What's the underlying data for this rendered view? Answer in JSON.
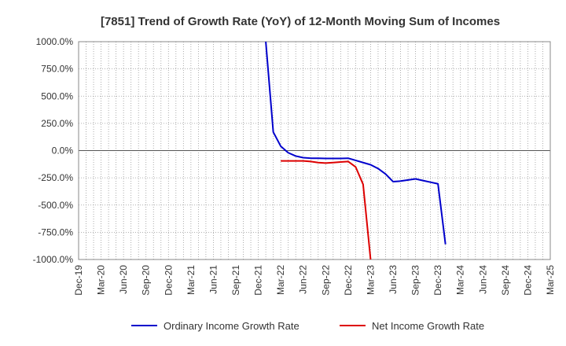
{
  "chart_data": {
    "type": "line",
    "title": "[7851]  Trend of Growth Rate (YoY) of 12-Month Moving Sum of Incomes",
    "xlabel": "",
    "ylabel": "",
    "ylim": [
      -1000,
      1000
    ],
    "y_ticks": [
      1000,
      750,
      500,
      250,
      0,
      -250,
      -500,
      -750,
      -1000
    ],
    "y_tick_labels": [
      "1000.0%",
      "750.0%",
      "500.0%",
      "250.0%",
      "0.0%",
      "-250.0%",
      "-500.0%",
      "-750.0%",
      "-1000.0%"
    ],
    "x_tick_labels": [
      "Dec-19",
      "Mar-20",
      "Jun-20",
      "Sep-20",
      "Dec-20",
      "Mar-21",
      "Jun-21",
      "Sep-21",
      "Dec-21",
      "Mar-22",
      "Jun-22",
      "Sep-22",
      "Dec-22",
      "Mar-23",
      "Jun-23",
      "Sep-23",
      "Dec-23",
      "Mar-24",
      "Jun-24",
      "Sep-24",
      "Dec-24",
      "Mar-25"
    ],
    "x_range": [
      "2019-12",
      "2025-03"
    ],
    "grid": true,
    "legend_position": "bottom",
    "series": [
      {
        "name": "Ordinary Income Growth Rate",
        "color": "#0000cc",
        "points": [
          [
            "2022-01",
            1000
          ],
          [
            "2022-02",
            170
          ],
          [
            "2022-03",
            40
          ],
          [
            "2022-04",
            -20
          ],
          [
            "2022-05",
            -50
          ],
          [
            "2022-06",
            -65
          ],
          [
            "2022-07",
            -70
          ],
          [
            "2022-08",
            -70
          ],
          [
            "2022-09",
            -72
          ],
          [
            "2022-10",
            -72
          ],
          [
            "2022-11",
            -72
          ],
          [
            "2022-12",
            -70
          ],
          [
            "2023-01",
            -90
          ],
          [
            "2023-02",
            -110
          ],
          [
            "2023-03",
            -130
          ],
          [
            "2023-04",
            -165
          ],
          [
            "2023-05",
            -215
          ],
          [
            "2023-06",
            -285
          ],
          [
            "2023-07",
            -280
          ],
          [
            "2023-08",
            -270
          ],
          [
            "2023-09",
            -260
          ],
          [
            "2023-10",
            -275
          ],
          [
            "2023-11",
            -290
          ],
          [
            "2023-12",
            -305
          ],
          [
            "2024-01",
            -860
          ]
        ]
      },
      {
        "name": "Net Income Growth Rate",
        "color": "#dd0000",
        "points": [
          [
            "2022-03",
            -95
          ],
          [
            "2022-04",
            -95
          ],
          [
            "2022-05",
            -95
          ],
          [
            "2022-06",
            -95
          ],
          [
            "2022-07",
            -100
          ],
          [
            "2022-08",
            -110
          ],
          [
            "2022-09",
            -115
          ],
          [
            "2022-10",
            -110
          ],
          [
            "2022-11",
            -105
          ],
          [
            "2022-12",
            -100
          ],
          [
            "2023-01",
            -150
          ],
          [
            "2023-02",
            -310
          ],
          [
            "2023-03",
            -1000
          ]
        ]
      }
    ]
  }
}
